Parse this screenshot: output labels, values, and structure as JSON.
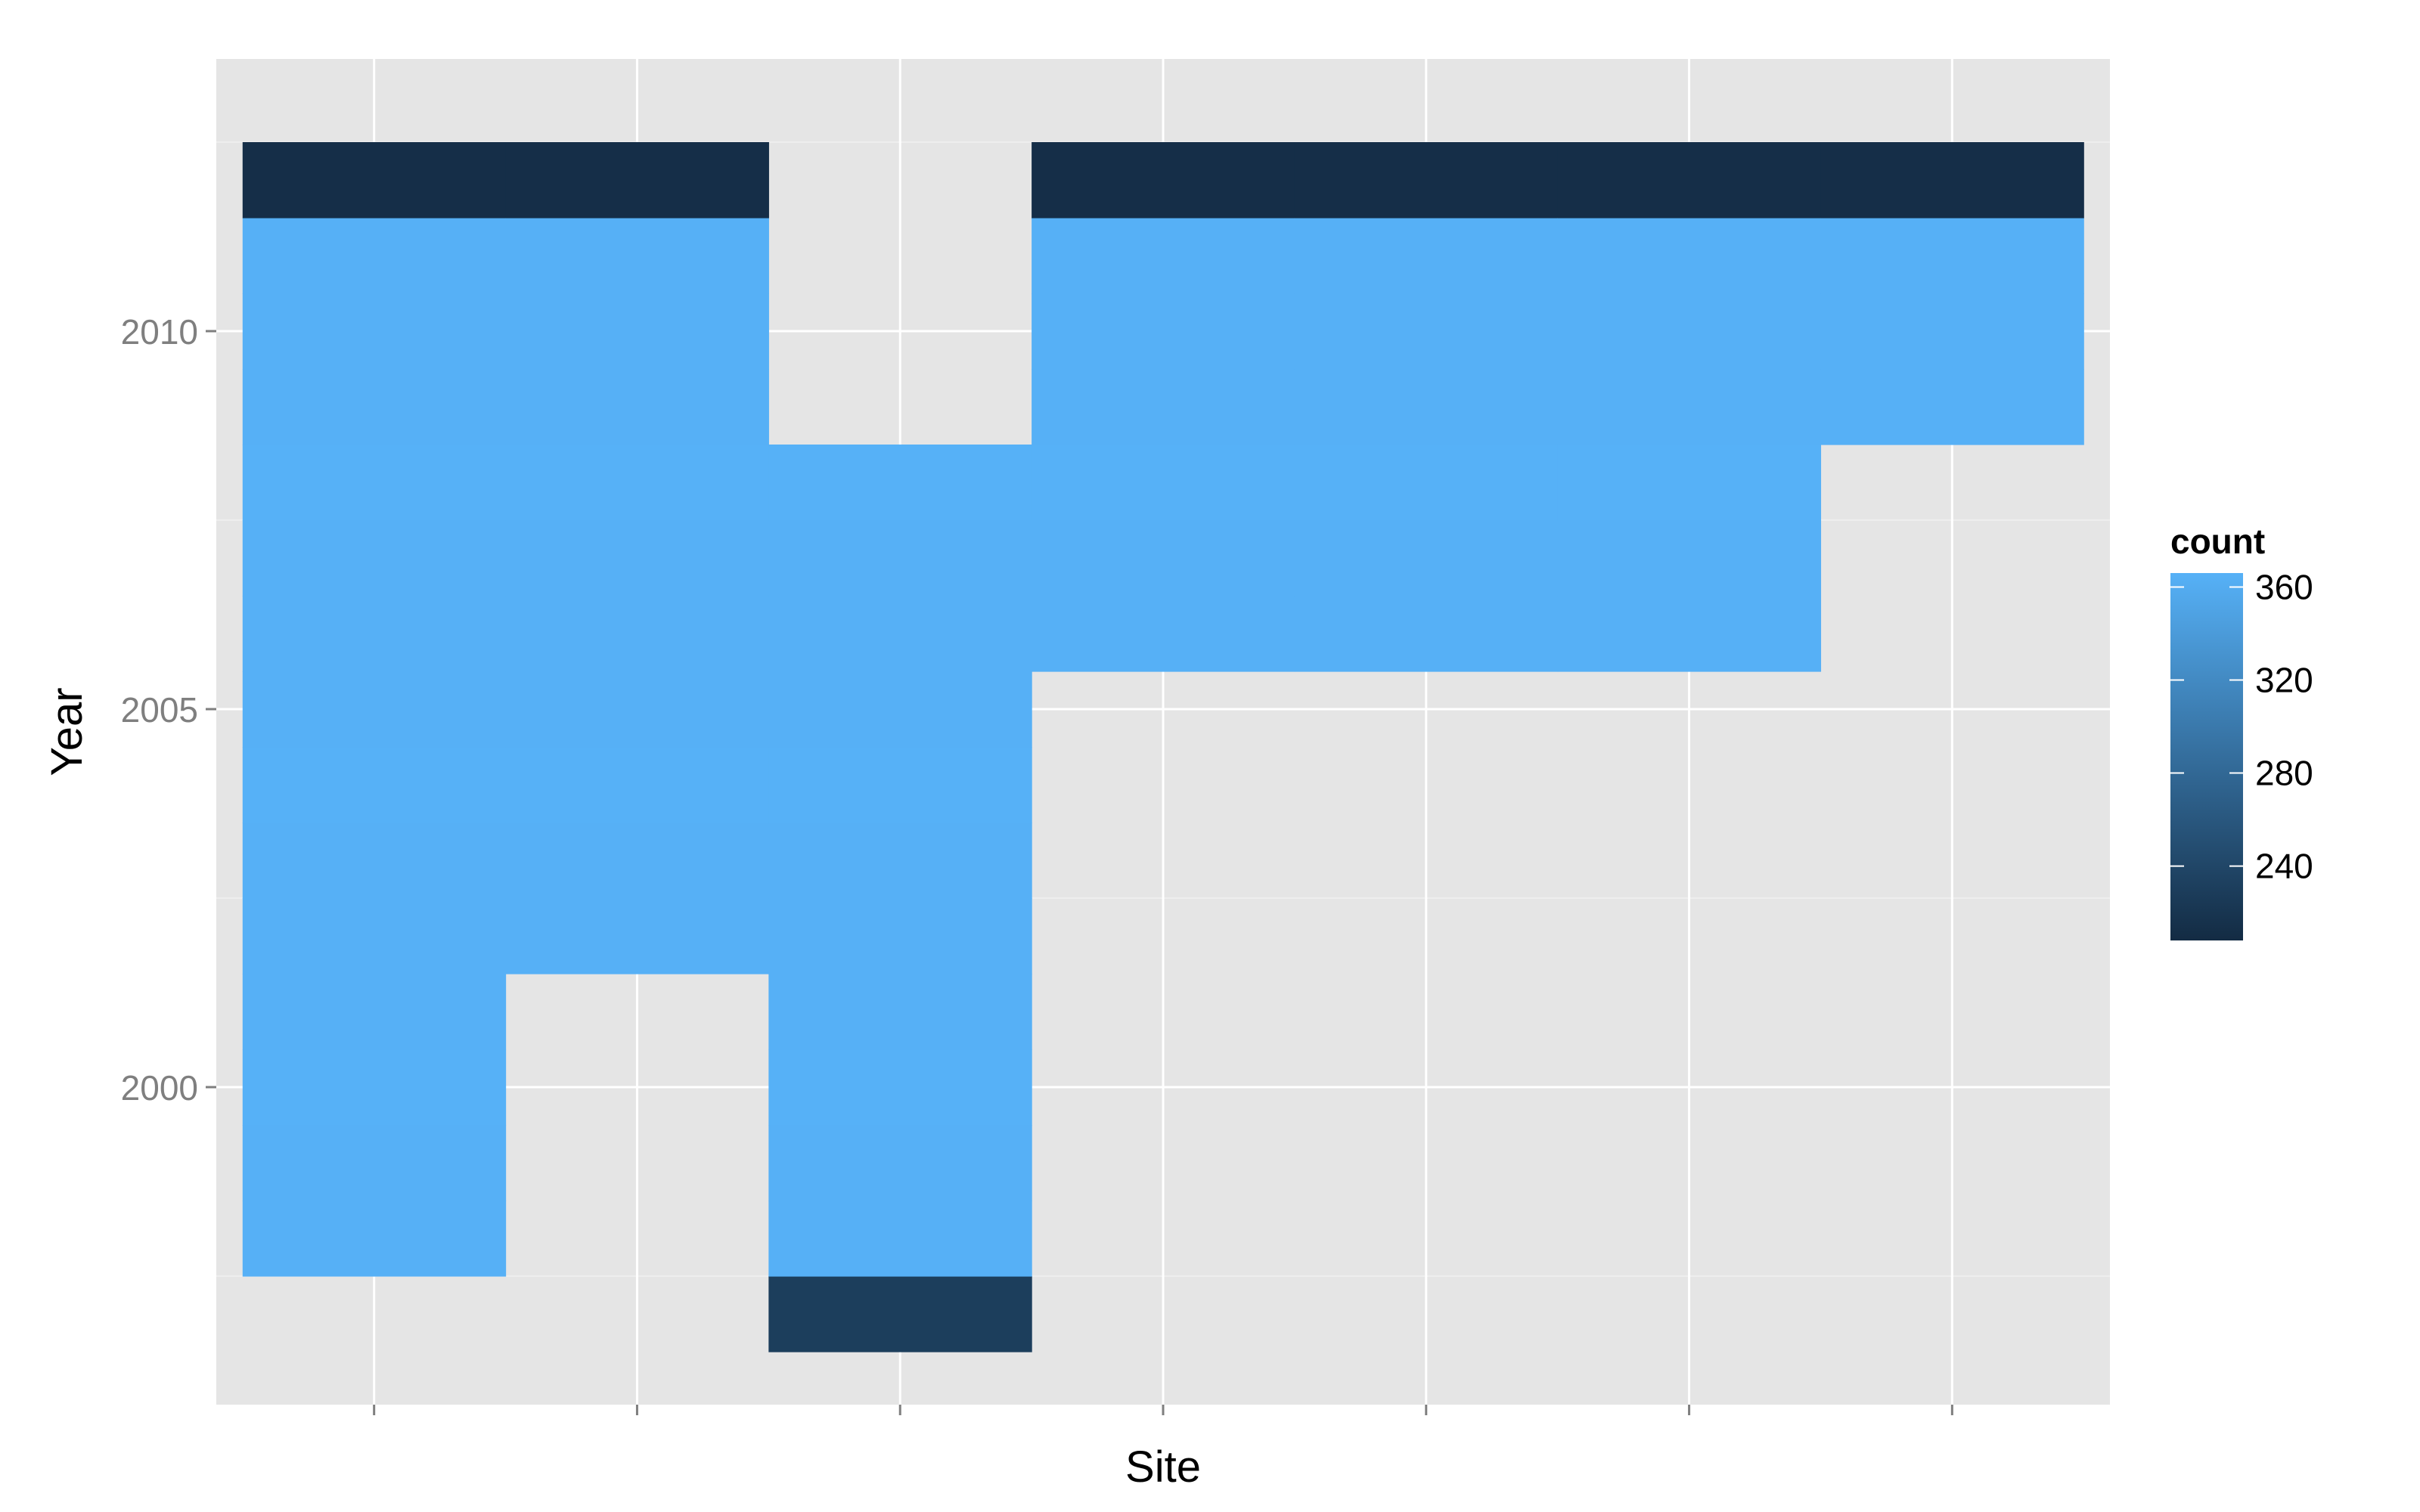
{
  "chart_data": {
    "type": "heatmap",
    "title": "",
    "xlabel": "Site",
    "ylabel": "Year",
    "x_tick_labels": [
      "",
      "",
      "",
      "",
      "",
      "",
      ""
    ],
    "y_ticks": [
      2000,
      2005,
      2010
    ],
    "xlim": [
      0.4,
      7.6
    ],
    "ylim": [
      1995.8,
      2013.6
    ],
    "grid": true,
    "legend": {
      "title": "count",
      "position": "right",
      "ticks": [
        240,
        280,
        320,
        360
      ],
      "range": [
        208,
        366
      ],
      "color_low": "#132B43",
      "color_high": "#56B1F7"
    },
    "cells": [
      {
        "x": 1,
        "y": 1998,
        "count": 365
      },
      {
        "x": 1,
        "y": 1999,
        "count": 365
      },
      {
        "x": 1,
        "y": 2000,
        "count": 366
      },
      {
        "x": 1,
        "y": 2001,
        "count": 365
      },
      {
        "x": 1,
        "y": 2002,
        "count": 365
      },
      {
        "x": 1,
        "y": 2003,
        "count": 365
      },
      {
        "x": 1,
        "y": 2004,
        "count": 366
      },
      {
        "x": 1,
        "y": 2005,
        "count": 365
      },
      {
        "x": 1,
        "y": 2006,
        "count": 365
      },
      {
        "x": 1,
        "y": 2007,
        "count": 365
      },
      {
        "x": 1,
        "y": 2008,
        "count": 366
      },
      {
        "x": 1,
        "y": 2009,
        "count": 365
      },
      {
        "x": 1,
        "y": 2010,
        "count": 365
      },
      {
        "x": 1,
        "y": 2011,
        "count": 365
      },
      {
        "x": 1,
        "y": 2012,
        "count": 212
      },
      {
        "x": 2,
        "y": 2002,
        "count": 365
      },
      {
        "x": 2,
        "y": 2003,
        "count": 365
      },
      {
        "x": 2,
        "y": 2004,
        "count": 366
      },
      {
        "x": 2,
        "y": 2005,
        "count": 365
      },
      {
        "x": 2,
        "y": 2006,
        "count": 365
      },
      {
        "x": 2,
        "y": 2007,
        "count": 365
      },
      {
        "x": 2,
        "y": 2008,
        "count": 366
      },
      {
        "x": 2,
        "y": 2009,
        "count": 365
      },
      {
        "x": 2,
        "y": 2010,
        "count": 365
      },
      {
        "x": 2,
        "y": 2011,
        "count": 365
      },
      {
        "x": 2,
        "y": 2012,
        "count": 212
      },
      {
        "x": 3,
        "y": 1997,
        "count": 230
      },
      {
        "x": 3,
        "y": 1998,
        "count": 365
      },
      {
        "x": 3,
        "y": 1999,
        "count": 365
      },
      {
        "x": 3,
        "y": 2000,
        "count": 366
      },
      {
        "x": 3,
        "y": 2001,
        "count": 365
      },
      {
        "x": 3,
        "y": 2002,
        "count": 365
      },
      {
        "x": 3,
        "y": 2003,
        "count": 365
      },
      {
        "x": 3,
        "y": 2004,
        "count": 366
      },
      {
        "x": 3,
        "y": 2005,
        "count": 365
      },
      {
        "x": 3,
        "y": 2006,
        "count": 365
      },
      {
        "x": 3,
        "y": 2007,
        "count": 365
      },
      {
        "x": 3,
        "y": 2008,
        "count": 366
      },
      {
        "x": 4,
        "y": 2006,
        "count": 365
      },
      {
        "x": 4,
        "y": 2007,
        "count": 365
      },
      {
        "x": 4,
        "y": 2008,
        "count": 366
      },
      {
        "x": 4,
        "y": 2009,
        "count": 365
      },
      {
        "x": 4,
        "y": 2010,
        "count": 365
      },
      {
        "x": 4,
        "y": 2011,
        "count": 365
      },
      {
        "x": 4,
        "y": 2012,
        "count": 212
      },
      {
        "x": 5,
        "y": 2006,
        "count": 365
      },
      {
        "x": 5,
        "y": 2007,
        "count": 365
      },
      {
        "x": 5,
        "y": 2008,
        "count": 366
      },
      {
        "x": 5,
        "y": 2009,
        "count": 365
      },
      {
        "x": 5,
        "y": 2010,
        "count": 365
      },
      {
        "x": 5,
        "y": 2011,
        "count": 365
      },
      {
        "x": 5,
        "y": 2012,
        "count": 212
      },
      {
        "x": 6,
        "y": 2006,
        "count": 365
      },
      {
        "x": 6,
        "y": 2007,
        "count": 365
      },
      {
        "x": 6,
        "y": 2008,
        "count": 366
      },
      {
        "x": 6,
        "y": 2009,
        "count": 365
      },
      {
        "x": 6,
        "y": 2010,
        "count": 365
      },
      {
        "x": 6,
        "y": 2011,
        "count": 365
      },
      {
        "x": 6,
        "y": 2012,
        "count": 212
      },
      {
        "x": 7,
        "y": 2009,
        "count": 365
      },
      {
        "x": 7,
        "y": 2010,
        "count": 365
      },
      {
        "x": 7,
        "y": 2011,
        "count": 365
      },
      {
        "x": 7,
        "y": 2012,
        "count": 212
      }
    ]
  }
}
